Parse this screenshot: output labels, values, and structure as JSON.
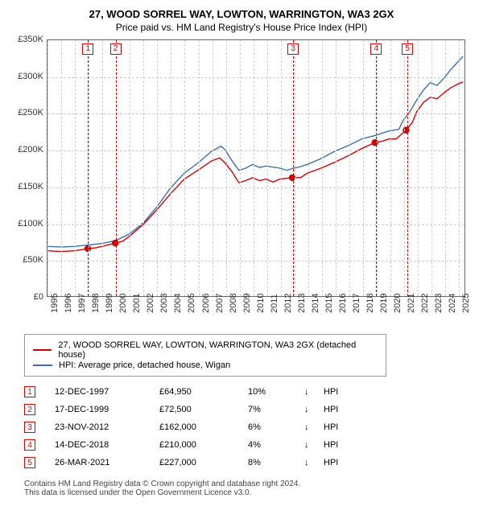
{
  "title": "27, WOOD SORREL WAY, LOWTON, WARRINGTON, WA3 2GX",
  "subtitle": "Price paid vs. HM Land Registry's House Price Index (HPI)",
  "chart": {
    "type": "line",
    "xlim": [
      1995,
      2025.5
    ],
    "ylim": [
      0,
      350000
    ],
    "ytick_step": 50000,
    "yticks": [
      "£0",
      "£50K",
      "£100K",
      "£150K",
      "£200K",
      "£250K",
      "£300K",
      "£350K"
    ],
    "xticks": [
      1995,
      1996,
      1997,
      1998,
      1999,
      2000,
      2001,
      2002,
      2003,
      2004,
      2005,
      2006,
      2007,
      2008,
      2009,
      2010,
      2011,
      2012,
      2013,
      2014,
      2015,
      2016,
      2017,
      2018,
      2019,
      2020,
      2021,
      2022,
      2023,
      2024,
      2025
    ],
    "ytick_bands": [
      [
        0,
        50000
      ],
      [
        100000,
        150000
      ],
      [
        200000,
        250000
      ],
      [
        300000,
        350000
      ]
    ],
    "grid_color": "#cfcfcf",
    "background_color": "#ffffff",
    "series_red_color": "#d00000",
    "series_blue_color": "#3b6fb0",
    "line_width": 1.4,
    "series_red": [
      [
        1995,
        62000
      ],
      [
        1996,
        61000
      ],
      [
        1997,
        62000
      ],
      [
        1997.95,
        64950
      ],
      [
        1998.5,
        66000
      ],
      [
        1999,
        68000
      ],
      [
        1999.96,
        72500
      ],
      [
        2000.5,
        75000
      ],
      [
        2001,
        82000
      ],
      [
        2002,
        98000
      ],
      [
        2003,
        118000
      ],
      [
        2004,
        140000
      ],
      [
        2005,
        160000
      ],
      [
        2006,
        172000
      ],
      [
        2007,
        185000
      ],
      [
        2007.6,
        189000
      ],
      [
        2008,
        182000
      ],
      [
        2008.5,
        170000
      ],
      [
        2009,
        155000
      ],
      [
        2009.5,
        158000
      ],
      [
        2010,
        162000
      ],
      [
        2010.5,
        158000
      ],
      [
        2011,
        160000
      ],
      [
        2011.5,
        156000
      ],
      [
        2012,
        160000
      ],
      [
        2012.9,
        162000
      ],
      [
        2013.5,
        162000
      ],
      [
        2014,
        168000
      ],
      [
        2015,
        175000
      ],
      [
        2016,
        183000
      ],
      [
        2017,
        192000
      ],
      [
        2018,
        202000
      ],
      [
        2018.95,
        210000
      ],
      [
        2019.5,
        212000
      ],
      [
        2020,
        215000
      ],
      [
        2020.5,
        215000
      ],
      [
        2021.23,
        227000
      ],
      [
        2021.7,
        238000
      ],
      [
        2022,
        252000
      ],
      [
        2022.5,
        265000
      ],
      [
        2023,
        272000
      ],
      [
        2023.5,
        270000
      ],
      [
        2024,
        278000
      ],
      [
        2024.5,
        285000
      ],
      [
        2025,
        290000
      ],
      [
        2025.4,
        293000
      ]
    ],
    "series_blue": [
      [
        1995,
        68000
      ],
      [
        1996,
        67000
      ],
      [
        1997,
        68000
      ],
      [
        1998,
        70000
      ],
      [
        1999,
        72000
      ],
      [
        2000,
        76000
      ],
      [
        2001,
        85000
      ],
      [
        2002,
        100000
      ],
      [
        2003,
        122000
      ],
      [
        2004,
        148000
      ],
      [
        2005,
        168000
      ],
      [
        2006,
        182000
      ],
      [
        2007,
        198000
      ],
      [
        2007.7,
        205000
      ],
      [
        2008,
        200000
      ],
      [
        2008.5,
        185000
      ],
      [
        2009,
        172000
      ],
      [
        2009.5,
        175000
      ],
      [
        2010,
        180000
      ],
      [
        2010.5,
        176000
      ],
      [
        2011,
        178000
      ],
      [
        2012,
        175000
      ],
      [
        2012.5,
        172000
      ],
      [
        2013,
        175000
      ],
      [
        2013.5,
        177000
      ],
      [
        2014,
        180000
      ],
      [
        2015,
        188000
      ],
      [
        2016,
        198000
      ],
      [
        2017,
        206000
      ],
      [
        2018,
        215000
      ],
      [
        2019,
        220000
      ],
      [
        2020,
        226000
      ],
      [
        2020.7,
        228000
      ],
      [
        2021,
        240000
      ],
      [
        2021.5,
        252000
      ],
      [
        2022,
        268000
      ],
      [
        2022.5,
        282000
      ],
      [
        2023,
        292000
      ],
      [
        2023.5,
        288000
      ],
      [
        2024,
        298000
      ],
      [
        2024.5,
        310000
      ],
      [
        2025,
        320000
      ],
      [
        2025.4,
        328000
      ]
    ],
    "markers": [
      {
        "x": 1997.95,
        "y": 64950
      },
      {
        "x": 1999.96,
        "y": 72500
      },
      {
        "x": 2012.9,
        "y": 162000
      },
      {
        "x": 2018.95,
        "y": 210000
      },
      {
        "x": 2021.23,
        "y": 227000
      }
    ],
    "marker_color": "#d00000",
    "marker_radius": 4
  },
  "legend": {
    "items": [
      {
        "color": "#d00000",
        "label": "27, WOOD SORREL WAY, LOWTON, WARRINGTON, WA3 2GX (detached house)"
      },
      {
        "color": "#3b6fb0",
        "label": "HPI: Average price, detached house, Wigan"
      }
    ]
  },
  "events": [
    {
      "n": "1",
      "date": "12-DEC-1997",
      "price": "£64,950",
      "pct": "10%",
      "dir": "↓",
      "ref": "HPI"
    },
    {
      "n": "2",
      "date": "17-DEC-1999",
      "price": "£72,500",
      "pct": "7%",
      "dir": "↓",
      "ref": "HPI"
    },
    {
      "n": "3",
      "date": "23-NOV-2012",
      "price": "£162,000",
      "pct": "6%",
      "dir": "↓",
      "ref": "HPI"
    },
    {
      "n": "4",
      "date": "14-DEC-2018",
      "price": "£210,000",
      "pct": "4%",
      "dir": "↓",
      "ref": "HPI"
    },
    {
      "n": "5",
      "date": "26-MAR-2021",
      "price": "£227,000",
      "pct": "8%",
      "dir": "↓",
      "ref": "HPI"
    }
  ],
  "footer": {
    "line1": "Contains HM Land Registry data © Crown copyright and database right 2024.",
    "line2": "This data is licensed under the Open Government Licence v3.0."
  }
}
